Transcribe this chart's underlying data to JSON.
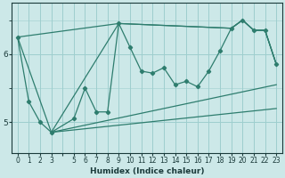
{
  "xlabel": "Humidex (Indice chaleur)",
  "bg_color": "#cce8e8",
  "line_color": "#2e7d6e",
  "yticks": [
    5.0,
    6.0
  ],
  "xlim": [
    -0.5,
    23.5
  ],
  "ylim": [
    4.55,
    6.75
  ],
  "grid_color": "#9ecece",
  "main_x": [
    0,
    1,
    2,
    3,
    5,
    6,
    7,
    8,
    9,
    10,
    11,
    12,
    13,
    14,
    15,
    16,
    17,
    18,
    19,
    20,
    21,
    22,
    23
  ],
  "main_y": [
    6.25,
    5.3,
    5.0,
    4.85,
    5.05,
    5.5,
    5.15,
    5.15,
    6.45,
    6.1,
    5.75,
    5.72,
    5.8,
    5.55,
    5.6,
    5.52,
    5.75,
    6.05,
    6.38,
    6.5,
    6.35,
    6.35,
    5.85
  ],
  "env_upper_x": [
    0,
    9,
    19,
    20,
    21,
    22,
    23
  ],
  "env_upper_y": [
    6.25,
    6.45,
    6.38,
    6.5,
    6.35,
    6.35,
    5.85
  ],
  "env_lower_x": [
    3,
    9,
    19,
    20,
    21,
    22,
    23
  ],
  "env_lower_y": [
    4.85,
    6.45,
    6.38,
    6.5,
    6.35,
    6.35,
    5.85
  ],
  "band_line1_x": [
    0,
    3,
    23
  ],
  "band_line1_y": [
    6.25,
    4.85,
    5.55
  ],
  "band_line2_x": [
    3,
    23
  ],
  "band_line2_y": [
    4.85,
    5.2
  ],
  "xlabel_fontsize": 6.5,
  "tick_fontsize": 5.5,
  "ytick_fontsize": 6.5
}
